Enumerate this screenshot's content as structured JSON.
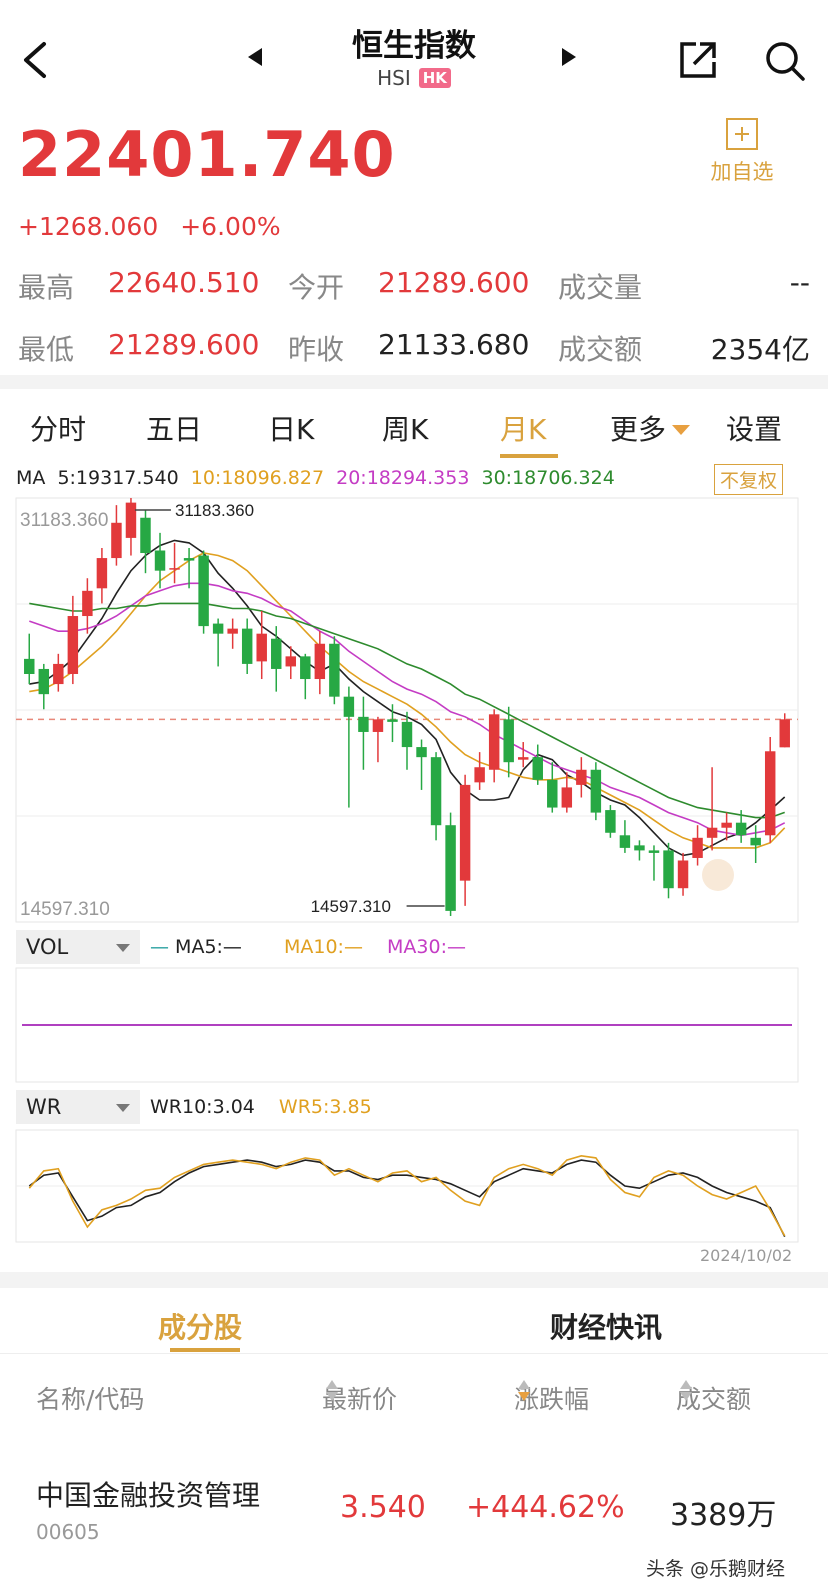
{
  "header": {
    "title": "恒生指数",
    "code": "HSI",
    "market_badge": "HK"
  },
  "quote": {
    "price": "22401.740",
    "change": "+1268.060",
    "change_pct": "+6.00%",
    "watch_label": "加自选"
  },
  "stats": {
    "high_label": "最高",
    "high": "22640.510",
    "open_label": "今开",
    "open": "21289.600",
    "volume_label": "成交量",
    "volume": "--",
    "low_label": "最低",
    "low": "21289.600",
    "prev_close_label": "昨收",
    "prev_close": "21133.680",
    "turnover_label": "成交额",
    "turnover": "2354亿"
  },
  "tabs": [
    {
      "label": "分时"
    },
    {
      "label": "五日"
    },
    {
      "label": "日K"
    },
    {
      "label": "周K"
    },
    {
      "label": "月K"
    },
    {
      "label": "更多"
    },
    {
      "label": "设置"
    }
  ],
  "ma": {
    "label": "MA",
    "ma5": "5:19317.540",
    "ma10": "10:18096.827",
    "ma20": "20:18294.353",
    "ma30": "30:18706.324",
    "adjust": "不复权"
  },
  "colors": {
    "up": "#e2393b",
    "down": "#27a844",
    "ma5": "#222222",
    "ma10": "#e0a020",
    "ma20": "#c43cc4",
    "ma30": "#2e8b2e",
    "accent": "#d9a23e"
  },
  "chart_data": {
    "type": "candlestick",
    "period": "monthly",
    "ylim": [
      14597.31,
      31183.36
    ],
    "y_axis_labels": [
      "31183.360",
      "14597.310"
    ],
    "annotations": [
      {
        "text": "31183.360",
        "value": 31183.36,
        "kind": "max"
      },
      {
        "text": "14597.310",
        "value": 14597.31,
        "kind": "min"
      }
    ],
    "reference_line": 22401.74,
    "candles": [
      [
        24800,
        24200,
        25800,
        23800
      ],
      [
        24400,
        23400,
        24600,
        22800
      ],
      [
        23800,
        24600,
        25000,
        23500
      ],
      [
        24200,
        26500,
        27300,
        23800
      ],
      [
        26500,
        27500,
        28000,
        25800
      ],
      [
        27600,
        28800,
        29200,
        27000
      ],
      [
        28800,
        30200,
        30900,
        28500
      ],
      [
        29600,
        31000,
        31183.36,
        28900
      ],
      [
        30400,
        29000,
        30700,
        28200
      ],
      [
        29100,
        28300,
        29800,
        27600
      ],
      [
        28400,
        28400,
        29400,
        27800
      ],
      [
        28800,
        28700,
        29200,
        27600
      ],
      [
        28900,
        26100,
        29100,
        25800
      ],
      [
        26200,
        25800,
        26400,
        24500
      ],
      [
        25800,
        26000,
        26400,
        25200
      ],
      [
        26000,
        24600,
        26400,
        24200
      ],
      [
        24700,
        25800,
        26700,
        24000
      ],
      [
        25600,
        24400,
        26100,
        23500
      ],
      [
        24500,
        24900,
        25300,
        24000
      ],
      [
        24900,
        24000,
        25000,
        23200
      ],
      [
        24000,
        25400,
        25900,
        23400
      ],
      [
        25400,
        23300,
        25700,
        23000
      ],
      [
        23300,
        22500,
        23700,
        18900
      ],
      [
        22500,
        21900,
        23300,
        20400
      ],
      [
        21900,
        22400,
        22500,
        20700
      ],
      [
        22400,
        22300,
        23000,
        21500
      ],
      [
        22300,
        21300,
        22700,
        20400
      ],
      [
        21300,
        20900,
        21600,
        19600
      ],
      [
        20900,
        18200,
        21100,
        17600
      ],
      [
        18200,
        14800,
        18700,
        14597.31
      ],
      [
        16000,
        19800,
        20200,
        15000
      ],
      [
        19900,
        20500,
        21100,
        19600
      ],
      [
        20400,
        22600,
        22800,
        19900
      ],
      [
        22400,
        20700,
        22900,
        20100
      ],
      [
        20800,
        20900,
        21500,
        20500
      ],
      [
        20900,
        20000,
        21400,
        19800
      ],
      [
        20000,
        18900,
        20700,
        18700
      ],
      [
        18900,
        19700,
        20300,
        18700
      ],
      [
        19800,
        20400,
        20900,
        19300
      ],
      [
        20400,
        18700,
        20700,
        18400
      ],
      [
        18800,
        17900,
        19000,
        17700
      ],
      [
        17800,
        17300,
        18400,
        17100
      ],
      [
        17400,
        17200,
        17600,
        16800
      ],
      [
        17200,
        17100,
        17400,
        16000
      ],
      [
        17200,
        15700,
        17500,
        15300
      ],
      [
        15700,
        16800,
        17100,
        15400
      ],
      [
        16900,
        17700,
        18200,
        16600
      ],
      [
        17700,
        18100,
        20500,
        17200
      ],
      [
        18100,
        18300,
        18700,
        17600
      ],
      [
        18300,
        17800,
        18800,
        17500
      ],
      [
        17700,
        17400,
        18200,
        16700
      ],
      [
        17800,
        21133.68,
        21700,
        17500
      ],
      [
        21289.6,
        22401.74,
        22640.51,
        21289.6
      ]
    ],
    "ma_series": [
      {
        "name": "5",
        "values": [
          23800,
          23900,
          24300,
          24800,
          25600,
          26400,
          27400,
          28300,
          28900,
          29300,
          29500,
          29400,
          29000,
          28200,
          27600,
          26900,
          26100,
          25700,
          25200,
          24700,
          24300,
          24600,
          24000,
          23500,
          23100,
          22700,
          22500,
          22200,
          21600,
          20300,
          19600,
          19200,
          19200,
          19300,
          20400,
          21000,
          20800,
          20200,
          19900,
          19500,
          19200,
          19000,
          18500,
          17900,
          17300,
          17000,
          17100,
          17400,
          17700,
          17900,
          18300,
          18800,
          19317.54
        ]
      },
      {
        "name": "10",
        "values": [
          23500,
          23600,
          23900,
          24300,
          24800,
          25300,
          25900,
          26600,
          27300,
          27900,
          28300,
          28700,
          29000,
          28900,
          28700,
          28300,
          27700,
          27100,
          26500,
          25900,
          25300,
          24800,
          24300,
          23900,
          23600,
          23300,
          23000,
          22600,
          22100,
          21500,
          21000,
          20700,
          20500,
          20300,
          20100,
          20000,
          20000,
          20100,
          20000,
          19700,
          19400,
          19100,
          18800,
          18400,
          18000,
          17700,
          17500,
          17300,
          17300,
          17300,
          17300,
          17500,
          18096.83
        ]
      },
      {
        "name": "20",
        "values": [
          26300,
          26100,
          25900,
          25900,
          26000,
          26200,
          26500,
          26900,
          27300,
          27500,
          27700,
          27800,
          27800,
          27700,
          27500,
          27400,
          27200,
          26900,
          26700,
          26300,
          25900,
          25600,
          25100,
          24700,
          24300,
          23900,
          23600,
          23400,
          23100,
          22700,
          22500,
          22200,
          21800,
          21500,
          21200,
          20900,
          20600,
          20400,
          20200,
          20000,
          19700,
          19500,
          19300,
          19000,
          18700,
          18500,
          18300,
          18000,
          17900,
          17800,
          17900,
          18000,
          18294.35
        ]
      },
      {
        "name": "30",
        "values": [
          27000,
          26900,
          26800,
          26700,
          26700,
          26800,
          26800,
          26900,
          26900,
          27000,
          27000,
          27000,
          27000,
          26900,
          26800,
          26800,
          26700,
          26500,
          26400,
          26200,
          26000,
          25800,
          25600,
          25400,
          25200,
          24900,
          24600,
          24400,
          24100,
          23800,
          23400,
          23200,
          22900,
          22600,
          22300,
          22000,
          21700,
          21400,
          21100,
          20800,
          20500,
          20200,
          19900,
          19600,
          19300,
          19100,
          18900,
          18800,
          18700,
          18600,
          18500,
          18500,
          18706.32
        ]
      }
    ]
  },
  "vol_panel": {
    "label": "VOL",
    "ma5": "MA5:—",
    "ma10": "MA10:—",
    "ma30": "MA30:—"
  },
  "wr_panel": {
    "label": "WR",
    "wr10": "WR10:3.04",
    "wr5": "WR5:3.85",
    "date": "2024/10/02",
    "wr10_values": [
      50,
      60,
      62,
      40,
      18,
      22,
      30,
      32,
      40,
      44,
      54,
      62,
      68,
      70,
      72,
      74,
      72,
      68,
      70,
      74,
      72,
      64,
      64,
      58,
      56,
      60,
      60,
      58,
      56,
      52,
      46,
      40,
      54,
      60,
      66,
      64,
      62,
      70,
      74,
      72,
      60,
      50,
      48,
      54,
      60,
      62,
      58,
      50,
      44,
      40,
      36,
      30,
      3.04
    ],
    "wr5_values": [
      48,
      64,
      66,
      36,
      12,
      28,
      32,
      38,
      46,
      48,
      58,
      64,
      70,
      72,
      74,
      72,
      70,
      66,
      72,
      76,
      74,
      60,
      66,
      60,
      54,
      62,
      64,
      54,
      58,
      46,
      36,
      32,
      58,
      66,
      70,
      66,
      60,
      74,
      78,
      76,
      56,
      44,
      40,
      58,
      64,
      60,
      50,
      42,
      38,
      44,
      50,
      28,
      3.85
    ]
  },
  "sub_tabs": [
    {
      "label": "成分股"
    },
    {
      "label": "财经快讯"
    }
  ],
  "table": {
    "headers": [
      "名称/代码",
      "最新价",
      "涨跌幅",
      "成交额"
    ],
    "rows": [
      {
        "name": "中国金融投资管理",
        "code": "00605",
        "price": "3.540",
        "pct": "+444.62%",
        "amount": "3389万"
      }
    ]
  },
  "watermark": "头条 @乐鹅财经"
}
